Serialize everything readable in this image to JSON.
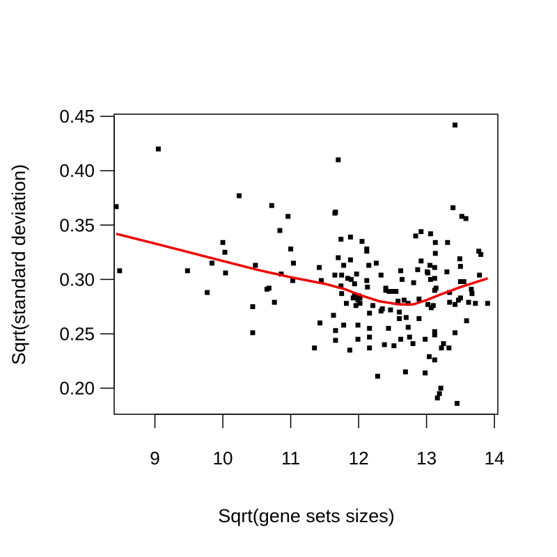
{
  "chart_data": {
    "type": "scatter",
    "title": "",
    "xlabel": "Sqrt(gene sets sizes)",
    "ylabel": "Sqrt(standard deviation)",
    "xlim": [
      8.4,
      14.05
    ],
    "ylim": [
      0.176,
      0.452
    ],
    "xticks": [
      9,
      10,
      11,
      12,
      13,
      14
    ],
    "xtick_labels": [
      "9",
      "10",
      "11",
      "12",
      "13",
      "14"
    ],
    "yticks": [
      0.2,
      0.25,
      0.3,
      0.35,
      0.4,
      0.45
    ],
    "ytick_labels": [
      "0.20",
      "0.25",
      "0.30",
      "0.35",
      "0.40",
      "0.45"
    ],
    "grid": false,
    "legend": "none",
    "colors": {
      "points": "#000000",
      "trend": "#ee0000",
      "axes": "#000000"
    },
    "points": [
      [
        8.43,
        0.367
      ],
      [
        8.48,
        0.308
      ],
      [
        9.05,
        0.42
      ],
      [
        9.48,
        0.308
      ],
      [
        9.77,
        0.288
      ],
      [
        9.84,
        0.315
      ],
      [
        10.0,
        0.334
      ],
      [
        10.03,
        0.325
      ],
      [
        10.04,
        0.306
      ],
      [
        10.24,
        0.377
      ],
      [
        10.44,
        0.275
      ],
      [
        10.44,
        0.251
      ],
      [
        10.48,
        0.313
      ],
      [
        10.65,
        0.291
      ],
      [
        10.68,
        0.292
      ],
      [
        10.72,
        0.368
      ],
      [
        10.76,
        0.279
      ],
      [
        10.84,
        0.345
      ],
      [
        10.86,
        0.305
      ],
      [
        10.96,
        0.358
      ],
      [
        11.0,
        0.328
      ],
      [
        11.04,
        0.315
      ],
      [
        11.03,
        0.299
      ],
      [
        11.35,
        0.237
      ],
      [
        11.42,
        0.311
      ],
      [
        11.45,
        0.299
      ],
      [
        11.43,
        0.26
      ],
      [
        11.63,
        0.267
      ],
      [
        11.65,
        0.361
      ],
      [
        11.66,
        0.362
      ],
      [
        11.65,
        0.304
      ],
      [
        11.66,
        0.244
      ],
      [
        11.66,
        0.253
      ],
      [
        11.7,
        0.41
      ],
      [
        11.7,
        0.32
      ],
      [
        11.74,
        0.337
      ],
      [
        11.75,
        0.304
      ],
      [
        11.74,
        0.294
      ],
      [
        11.75,
        0.287
      ],
      [
        11.78,
        0.258
      ],
      [
        11.78,
        0.313
      ],
      [
        11.82,
        0.278
      ],
      [
        11.84,
        0.301
      ],
      [
        11.88,
        0.339
      ],
      [
        11.88,
        0.318
      ],
      [
        11.87,
        0.235
      ],
      [
        11.89,
        0.3
      ],
      [
        11.92,
        0.283
      ],
      [
        11.94,
        0.296
      ],
      [
        11.94,
        0.286
      ],
      [
        11.96,
        0.276
      ],
      [
        11.97,
        0.305
      ],
      [
        11.99,
        0.258
      ],
      [
        11.99,
        0.245
      ],
      [
        11.99,
        0.281
      ],
      [
        12.0,
        0.285
      ],
      [
        12.02,
        0.278
      ],
      [
        12.02,
        0.283
      ],
      [
        12.05,
        0.335
      ],
      [
        12.12,
        0.328
      ],
      [
        12.12,
        0.326
      ],
      [
        12.12,
        0.299
      ],
      [
        12.13,
        0.293
      ],
      [
        12.15,
        0.313
      ],
      [
        12.16,
        0.269
      ],
      [
        12.16,
        0.255
      ],
      [
        12.16,
        0.247
      ],
      [
        12.16,
        0.237
      ],
      [
        12.21,
        0.276
      ],
      [
        12.26,
        0.315
      ],
      [
        12.28,
        0.211
      ],
      [
        12.33,
        0.304
      ],
      [
        12.33,
        0.271
      ],
      [
        12.35,
        0.273
      ],
      [
        12.38,
        0.24
      ],
      [
        12.4,
        0.292
      ],
      [
        12.4,
        0.29
      ],
      [
        12.45,
        0.289
      ],
      [
        12.44,
        0.255
      ],
      [
        12.47,
        0.272
      ],
      [
        12.5,
        0.289
      ],
      [
        12.52,
        0.239
      ],
      [
        12.55,
        0.289
      ],
      [
        12.58,
        0.28
      ],
      [
        12.6,
        0.27
      ],
      [
        12.6,
        0.264
      ],
      [
        12.62,
        0.308
      ],
      [
        12.62,
        0.245
      ],
      [
        12.64,
        0.3
      ],
      [
        12.67,
        0.281
      ],
      [
        12.69,
        0.215
      ],
      [
        12.7,
        0.265
      ],
      [
        12.73,
        0.278
      ],
      [
        12.73,
        0.256
      ],
      [
        12.75,
        0.247
      ],
      [
        12.8,
        0.241
      ],
      [
        12.81,
        0.297
      ],
      [
        12.84,
        0.34
      ],
      [
        12.87,
        0.309
      ],
      [
        12.89,
        0.282
      ],
      [
        12.89,
        0.264
      ],
      [
        12.92,
        0.344
      ],
      [
        12.92,
        0.317
      ],
      [
        12.98,
        0.214
      ],
      [
        12.98,
        0.245
      ],
      [
        13.01,
        0.307
      ],
      [
        13.02,
        0.306
      ],
      [
        13.02,
        0.277
      ],
      [
        13.04,
        0.229
      ],
      [
        13.06,
        0.342
      ],
      [
        13.05,
        0.313
      ],
      [
        13.06,
        0.3
      ],
      [
        13.07,
        0.274
      ],
      [
        13.1,
        0.276
      ],
      [
        13.12,
        0.311
      ],
      [
        13.12,
        0.226
      ],
      [
        13.13,
        0.334
      ],
      [
        13.13,
        0.324
      ],
      [
        13.12,
        0.301
      ],
      [
        13.12,
        0.29
      ],
      [
        13.12,
        0.252
      ],
      [
        13.12,
        0.249
      ],
      [
        13.14,
        0.292
      ],
      [
        13.16,
        0.191
      ],
      [
        13.19,
        0.195
      ],
      [
        13.21,
        0.2
      ],
      [
        13.22,
        0.237
      ],
      [
        13.25,
        0.241
      ],
      [
        13.3,
        0.307
      ],
      [
        13.31,
        0.334
      ],
      [
        13.34,
        0.288
      ],
      [
        13.34,
        0.279
      ],
      [
        13.33,
        0.237
      ],
      [
        13.39,
        0.366
      ],
      [
        13.42,
        0.442
      ],
      [
        13.42,
        0.277
      ],
      [
        13.42,
        0.251
      ],
      [
        13.45,
        0.186
      ],
      [
        13.47,
        0.281
      ],
      [
        13.49,
        0.319
      ],
      [
        13.5,
        0.312
      ],
      [
        13.5,
        0.298
      ],
      [
        13.5,
        0.283
      ],
      [
        13.52,
        0.358
      ],
      [
        13.55,
        0.298
      ],
      [
        13.58,
        0.356
      ],
      [
        13.59,
        0.262
      ],
      [
        13.62,
        0.279
      ],
      [
        13.66,
        0.291
      ],
      [
        13.67,
        0.287
      ],
      [
        13.72,
        0.278
      ],
      [
        13.77,
        0.326
      ],
      [
        13.78,
        0.304
      ],
      [
        13.8,
        0.323
      ],
      [
        13.9,
        0.278
      ]
    ],
    "trend": {
      "x": [
        8.43,
        9.0,
        9.5,
        10.0,
        10.5,
        11.0,
        11.5,
        11.8,
        12.0,
        12.3,
        12.6,
        12.8,
        13.0,
        13.2,
        13.5,
        13.9
      ],
      "y": [
        0.342,
        0.333,
        0.325,
        0.317,
        0.309,
        0.302,
        0.296,
        0.291,
        0.286,
        0.28,
        0.277,
        0.277,
        0.281,
        0.286,
        0.293,
        0.301
      ]
    }
  }
}
